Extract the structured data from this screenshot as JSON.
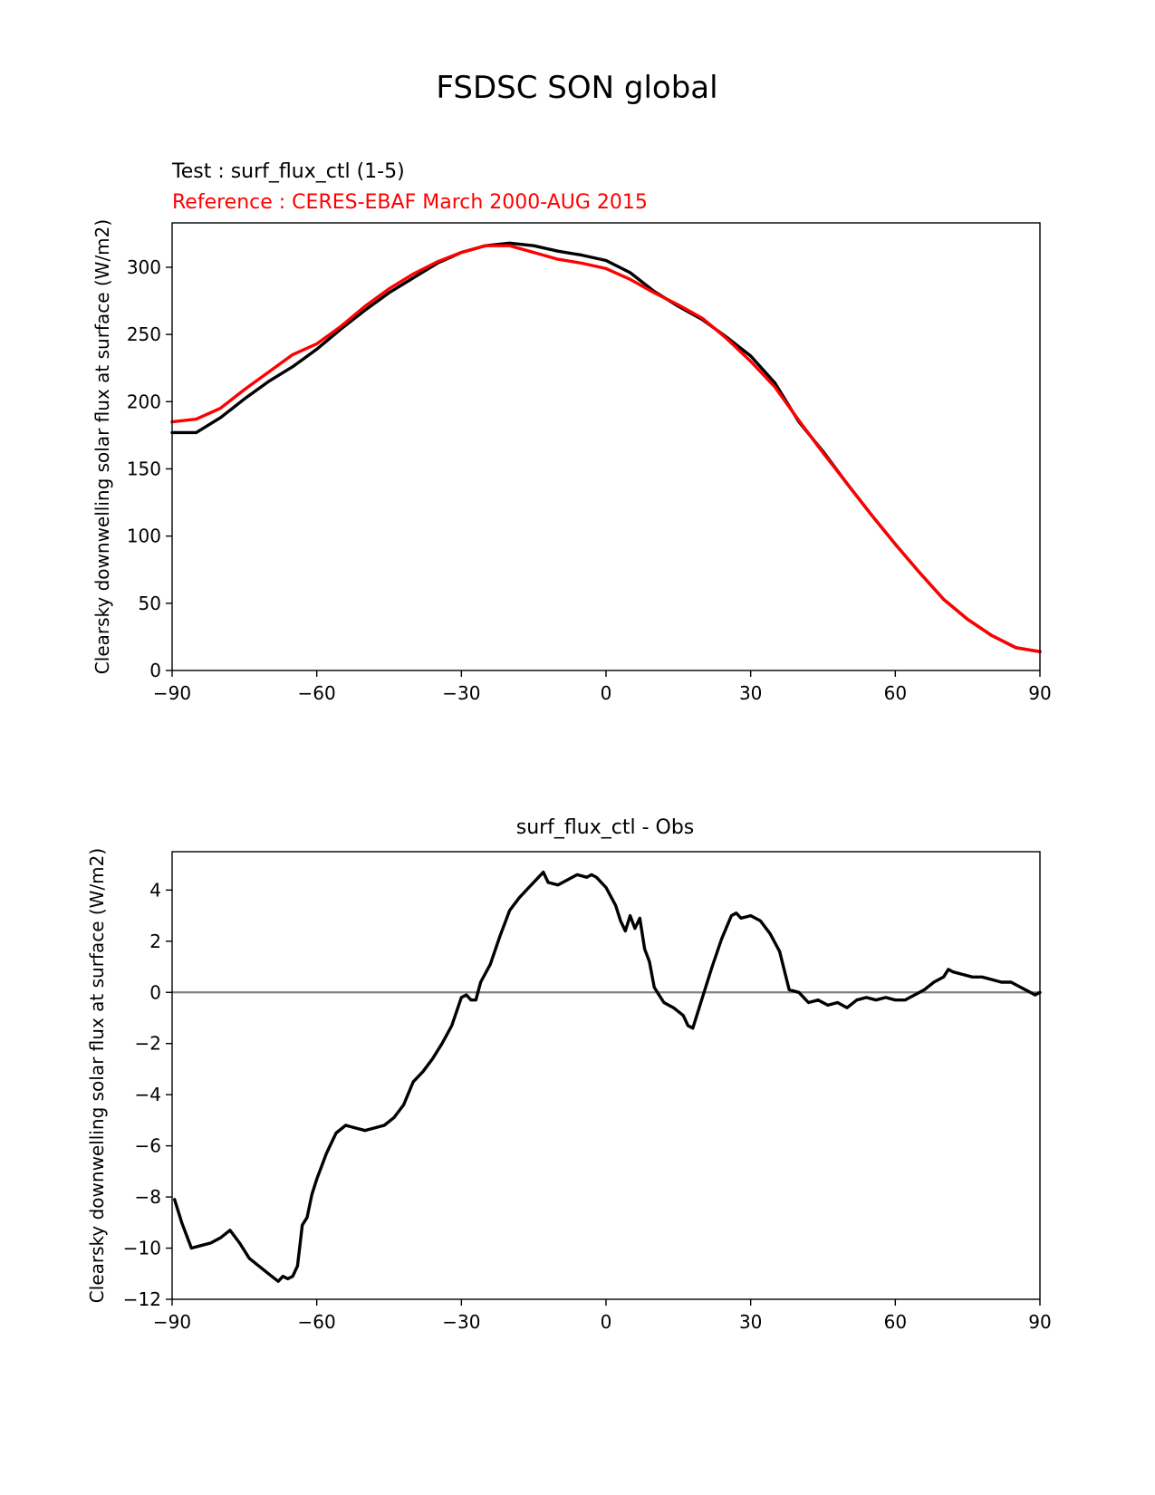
{
  "figure": {
    "title": "FSDSC SON global"
  },
  "chart_data": [
    {
      "type": "line",
      "test_label": "Test : surf_flux_ctl (1-5)",
      "reference_label": "Reference : CERES-EBAF March 2000-AUG 2015",
      "title": "",
      "xlabel": "",
      "ylabel": "Clearsky downwelling solar flux at surface (W/m2)",
      "xlim": [
        -90,
        90
      ],
      "ylim": [
        0,
        333
      ],
      "xticks": [
        -90,
        -60,
        -30,
        0,
        30,
        60,
        90
      ],
      "xtick_labels": [
        "−90",
        "−60",
        "−30",
        "0",
        "30",
        "60",
        "90"
      ],
      "yticks": [
        0,
        50,
        100,
        150,
        200,
        250,
        300
      ],
      "ytick_labels": [
        "0",
        "50",
        "100",
        "150",
        "200",
        "250",
        "300"
      ],
      "grid": false,
      "series": [
        {
          "color": "#000000",
          "x": [
            -90,
            -85,
            -80,
            -75,
            -70,
            -65,
            -60,
            -55,
            -50,
            -45,
            -40,
            -35,
            -30,
            -25,
            -20,
            -15,
            -10,
            -5,
            0,
            5,
            10,
            15,
            20,
            25,
            30,
            35,
            40,
            45,
            50,
            55,
            60,
            65,
            70,
            75,
            80,
            85,
            90
          ],
          "y": [
            177,
            177,
            188,
            202,
            215,
            226,
            239,
            254,
            268,
            281,
            292,
            303,
            311,
            316,
            318,
            316,
            312,
            309,
            305,
            296,
            282,
            271,
            261,
            248,
            234,
            214,
            185,
            163,
            139,
            116,
            94,
            73,
            53,
            38,
            26,
            17,
            14
          ]
        },
        {
          "color": "#ff0000",
          "x": [
            -90,
            -85,
            -80,
            -75,
            -70,
            -65,
            -60,
            -55,
            -50,
            -45,
            -40,
            -35,
            -30,
            -25,
            -20,
            -15,
            -10,
            -5,
            0,
            5,
            10,
            15,
            20,
            25,
            30,
            35,
            40,
            45,
            50,
            55,
            60,
            65,
            70,
            75,
            80,
            85,
            90
          ],
          "y": [
            185,
            187,
            195,
            209,
            222,
            235,
            243,
            256,
            271,
            284,
            295,
            304,
            311,
            316,
            316,
            311,
            306,
            303,
            299,
            291,
            281,
            272,
            262,
            247,
            230,
            211,
            186,
            162,
            139,
            116,
            94,
            73,
            53,
            38,
            26,
            17,
            14
          ]
        }
      ]
    },
    {
      "type": "line",
      "title": "surf_flux_ctl - Obs",
      "xlabel": "",
      "ylabel": "Clearsky downwelling solar flux at surface (W/m2)",
      "xlim": [
        -90,
        90
      ],
      "ylim": [
        -12,
        5.5
      ],
      "xticks": [
        -90,
        -60,
        -30,
        0,
        30,
        60,
        90
      ],
      "xtick_labels": [
        "−90",
        "−60",
        "−30",
        "0",
        "30",
        "60",
        "90"
      ],
      "yticks": [
        -12,
        -10,
        -8,
        -6,
        -4,
        -2,
        0,
        2,
        4
      ],
      "ytick_labels": [
        "−12",
        "−10",
        "−8",
        "−6",
        "−4",
        "−2",
        "0",
        "2",
        "4"
      ],
      "grid": false,
      "zero_line_color": "#808080",
      "series": [
        {
          "color": "#000000",
          "x": [
            -89.5,
            -88,
            -86,
            -84,
            -82,
            -80,
            -78,
            -76,
            -74,
            -72,
            -70,
            -68,
            -67,
            -66,
            -65,
            -64,
            -63,
            -62,
            -61,
            -60,
            -58,
            -56,
            -54,
            -52,
            -50,
            -48,
            -46,
            -44,
            -42,
            -40,
            -38,
            -36,
            -34,
            -32,
            -30,
            -29,
            -28,
            -27,
            -26,
            -24,
            -22,
            -20,
            -18,
            -16,
            -14,
            -13,
            -12,
            -10,
            -8,
            -6,
            -4,
            -3,
            -2,
            -1,
            0,
            2,
            3,
            4,
            5,
            6,
            7,
            8,
            9,
            10,
            11,
            12,
            14,
            16,
            17,
            18,
            20,
            22,
            24,
            26,
            27,
            28,
            30,
            32,
            34,
            36,
            38,
            40,
            42,
            44,
            46,
            48,
            50,
            52,
            54,
            56,
            58,
            60,
            62,
            64,
            66,
            68,
            70,
            71,
            72,
            74,
            76,
            78,
            80,
            82,
            84,
            86,
            88,
            89,
            90
          ],
          "y": [
            -8.1,
            -9.0,
            -10.0,
            -9.9,
            -9.8,
            -9.6,
            -9.3,
            -9.8,
            -10.4,
            -10.7,
            -11.0,
            -11.3,
            -11.1,
            -11.2,
            -11.1,
            -10.7,
            -9.1,
            -8.8,
            -7.9,
            -7.3,
            -6.3,
            -5.5,
            -5.2,
            -5.3,
            -5.4,
            -5.3,
            -5.2,
            -4.9,
            -4.4,
            -3.5,
            -3.1,
            -2.6,
            -2.0,
            -1.3,
            -0.2,
            -0.1,
            -0.3,
            -0.3,
            0.4,
            1.1,
            2.2,
            3.2,
            3.7,
            4.1,
            4.5,
            4.7,
            4.3,
            4.2,
            4.4,
            4.6,
            4.5,
            4.6,
            4.5,
            4.3,
            4.1,
            3.4,
            2.8,
            2.4,
            3.0,
            2.5,
            2.9,
            1.7,
            1.2,
            0.2,
            -0.1,
            -0.4,
            -0.6,
            -0.9,
            -1.3,
            -1.4,
            -0.2,
            1.0,
            2.1,
            3.0,
            3.1,
            2.9,
            3.0,
            2.8,
            2.3,
            1.6,
            0.1,
            0.0,
            -0.4,
            -0.3,
            -0.5,
            -0.4,
            -0.6,
            -0.3,
            -0.2,
            -0.3,
            -0.2,
            -0.3,
            -0.3,
            -0.1,
            0.1,
            0.4,
            0.6,
            0.9,
            0.8,
            0.7,
            0.6,
            0.6,
            0.5,
            0.4,
            0.4,
            0.2,
            0.0,
            -0.1,
            0.0
          ]
        }
      ]
    }
  ]
}
